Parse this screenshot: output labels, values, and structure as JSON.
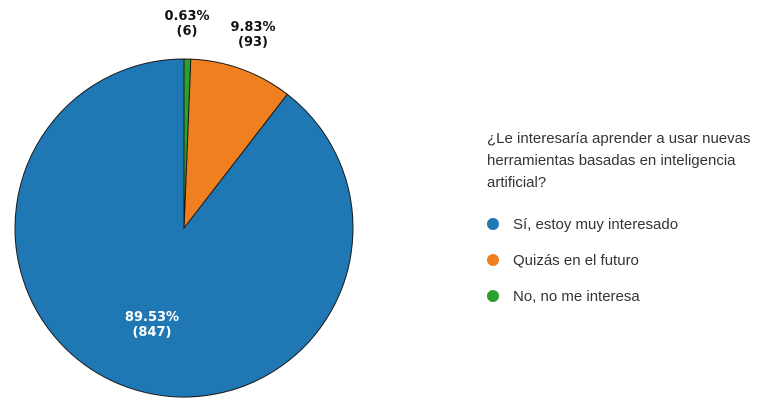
{
  "chart_data": {
    "type": "pie",
    "title": "¿Le interesaría aprender a usar nuevas herramientas basadas en inteligencia artificial?",
    "categories": [
      "Sí, estoy muy interesado",
      "Quizás en el futuro",
      "No, no me interesa"
    ],
    "values": [
      847,
      93,
      6
    ],
    "percent_labels": [
      "89.53%",
      "9.83%",
      "0.63%"
    ],
    "count_labels": [
      "(847)",
      "(93)",
      "(6)"
    ],
    "colors": [
      "#1f77b4",
      "#f07f20",
      "#2ca02c"
    ],
    "label_colors": [
      "#ffffff",
      "#111111",
      "#111111"
    ],
    "legend_placement": "right"
  }
}
